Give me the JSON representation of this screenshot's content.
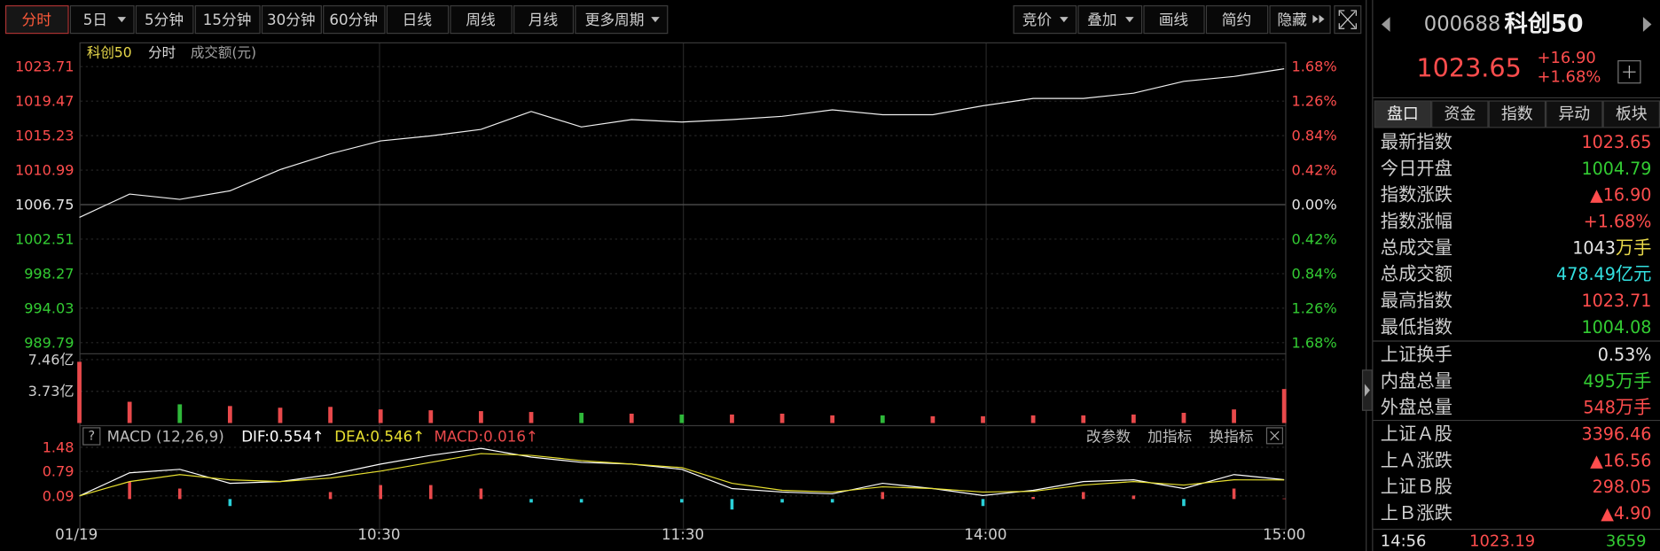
{
  "toolbar": {
    "left": [
      "分时",
      "5日",
      "5分钟",
      "15分钟",
      "30分钟",
      "60分钟",
      "日线",
      "周线",
      "月线",
      "更多周期"
    ],
    "right": [
      "竞价",
      "叠加",
      "画线",
      "简约",
      "隐藏"
    ]
  },
  "chart_header": {
    "name": "科创50",
    "mode": "分时",
    "unit": "成交额(元)"
  },
  "price_chart": {
    "type": "line",
    "ylim": [
      989.79,
      1023.71
    ],
    "yticks": [
      1023.71,
      1019.47,
      1015.23,
      1010.99,
      1006.75,
      1002.51,
      998.27,
      994.03,
      989.79
    ],
    "right_labels": [
      "1.68%",
      "1.26%",
      "0.84%",
      "0.42%",
      "0.00%",
      "0.42%",
      "0.84%",
      "1.26%",
      "1.68%"
    ],
    "values": [
      1005.18,
      1008.05,
      1007.4,
      1008.45,
      1011.06,
      1013.0,
      1014.58,
      1015.2,
      1016.0,
      1018.2,
      1016.3,
      1017.2,
      1016.9,
      1017.2,
      1017.6,
      1018.4,
      1017.8,
      1017.8,
      1018.9,
      1019.8,
      1019.8,
      1020.45,
      1021.9,
      1022.5,
      1023.45
    ],
    "color": "#f0f0f0",
    "x_labels": [
      "01/19",
      "10:30",
      "11:30",
      "14:00",
      "15:00"
    ]
  },
  "volume": {
    "type": "bar",
    "ylim": [
      0,
      7.46
    ],
    "yticks": [
      {
        "value": 7.46,
        "label": "7.46亿"
      },
      {
        "value": 3.73,
        "label": "3.73亿"
      }
    ],
    "values": [
      7.2,
      2.5,
      2.2,
      2.0,
      1.8,
      1.9,
      1.6,
      1.5,
      1.4,
      1.3,
      1.2,
      1.1,
      1.0,
      1.0,
      1.1,
      0.9,
      0.9,
      0.8,
      0.8,
      0.9,
      0.9,
      1.0,
      1.2,
      1.6,
      4.0
    ],
    "up_color": "#e8494b",
    "down_color": "#2fb83a"
  },
  "macd": {
    "type": "line",
    "help": "?",
    "title": "MACD (12,26,9)",
    "dif_label": "DIF:0.554↑",
    "dea_label": "DEA:0.546↑",
    "macd_label": "MACD:0.016↑",
    "actions": [
      "改参数",
      "加指标",
      "换指标"
    ],
    "ylim": [
      -0.7,
      1.6
    ],
    "yticks": [
      1.48,
      0.79,
      0.09
    ],
    "dif": [
      0.09,
      0.75,
      0.85,
      0.45,
      0.5,
      0.7,
      1.0,
      1.25,
      1.45,
      1.2,
      1.05,
      1.0,
      0.85,
      0.3,
      0.2,
      0.15,
      0.45,
      0.3,
      0.1,
      0.25,
      0.5,
      0.55,
      0.3,
      0.7,
      0.554
    ],
    "dea": [
      0.09,
      0.5,
      0.7,
      0.55,
      0.5,
      0.6,
      0.8,
      1.05,
      1.3,
      1.25,
      1.1,
      1.0,
      0.9,
      0.45,
      0.25,
      0.2,
      0.35,
      0.3,
      0.2,
      0.22,
      0.4,
      0.5,
      0.4,
      0.55,
      0.546
    ],
    "hist": [
      0,
      0.5,
      0.3,
      -0.2,
      0,
      0.2,
      0.4,
      0.4,
      0.3,
      -0.1,
      -0.1,
      0,
      -0.1,
      -0.3,
      -0.1,
      -0.1,
      0.2,
      0,
      -0.2,
      0.06,
      0.2,
      0.1,
      -0.2,
      0.3,
      0.016
    ],
    "dif_color": "#ffffff",
    "dea_color": "#e8e030",
    "pos_color": "#e8494b",
    "neg_color": "#2ad0d8"
  },
  "quote": {
    "code": "000688",
    "name": "科创50",
    "price": "1023.65",
    "change": "+16.90",
    "pct": "+1.68%",
    "tabs": [
      "盘口",
      "资金",
      "指数",
      "异动",
      "板块"
    ],
    "rows": [
      {
        "label": "最新指数",
        "value": "1023.65",
        "color": "#ff4d4d"
      },
      {
        "label": "今日开盘",
        "value": "1004.79",
        "color": "#33cc33"
      },
      {
        "label": "指数涨跌",
        "value": "▲16.90",
        "color": "#ff4d4d"
      },
      {
        "label": "指数涨幅",
        "value": "+1.68%",
        "color": "#ff4d4d"
      },
      {
        "label": "总成交量",
        "value": "1043",
        "unit": "万手",
        "color": "#e6e6e6"
      },
      {
        "label": "总成交额",
        "value": "478.49",
        "unit": "亿元",
        "color": "#33e0e0"
      },
      {
        "label": "最高指数",
        "value": "1023.71",
        "color": "#ff4d4d"
      },
      {
        "label": "最低指数",
        "value": "1004.08",
        "color": "#33cc33"
      }
    ],
    "rows2": [
      {
        "label": "上证换手",
        "value": "0.53%",
        "color": "#e6e6e6"
      },
      {
        "label": "内盘总量",
        "value": "495",
        "unit": "万手",
        "color": "#33cc33"
      },
      {
        "label": "外盘总量",
        "value": "548",
        "unit": "万手",
        "color": "#ff4d4d"
      }
    ],
    "rows3": [
      {
        "label": "上证Ａ股",
        "value": "3396.46",
        "color": "#ff4d4d"
      },
      {
        "label": "上Ａ涨跌",
        "value": "▲16.56",
        "color": "#ff4d4d"
      },
      {
        "label": "上证Ｂ股",
        "value": "298.05",
        "color": "#ff4d4d"
      },
      {
        "label": "上Ｂ涨跌",
        "value": "▲4.90",
        "color": "#ff4d4d"
      }
    ],
    "footer": {
      "time": "14:56",
      "price": "1023.19",
      "volume": "3659"
    }
  }
}
